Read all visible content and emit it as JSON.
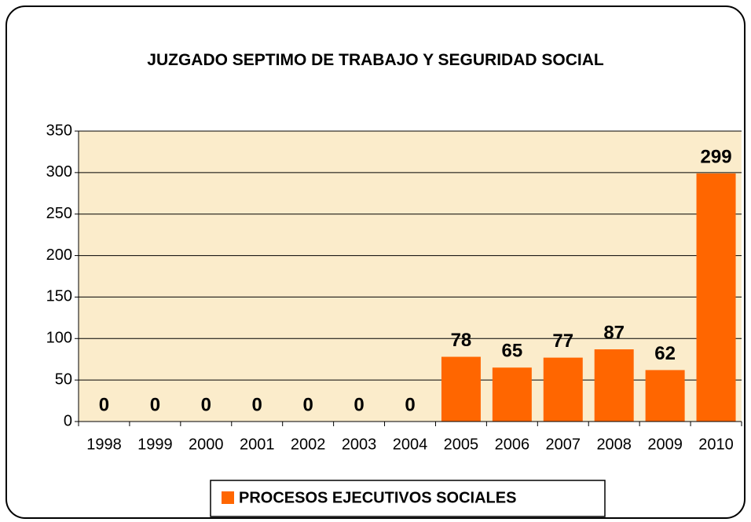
{
  "chart_data": {
    "type": "bar",
    "title": "JUZGADO SEPTIMO DE TRABAJO Y SEGURIDAD SOCIAL",
    "categories": [
      "1998",
      "1999",
      "2000",
      "2001",
      "2002",
      "2003",
      "2004",
      "2005",
      "2006",
      "2007",
      "2008",
      "2009",
      "2010"
    ],
    "series": [
      {
        "name": "PROCESOS EJECUTIVOS SOCIALES",
        "color": "#ff6600",
        "values": [
          0,
          0,
          0,
          0,
          0,
          0,
          0,
          78,
          65,
          77,
          87,
          62,
          299
        ]
      }
    ],
    "ylim": [
      0,
      350
    ],
    "yticks": [
      0,
      50,
      100,
      150,
      200,
      250,
      300,
      350
    ],
    "grid": true,
    "legend": "bottom"
  }
}
